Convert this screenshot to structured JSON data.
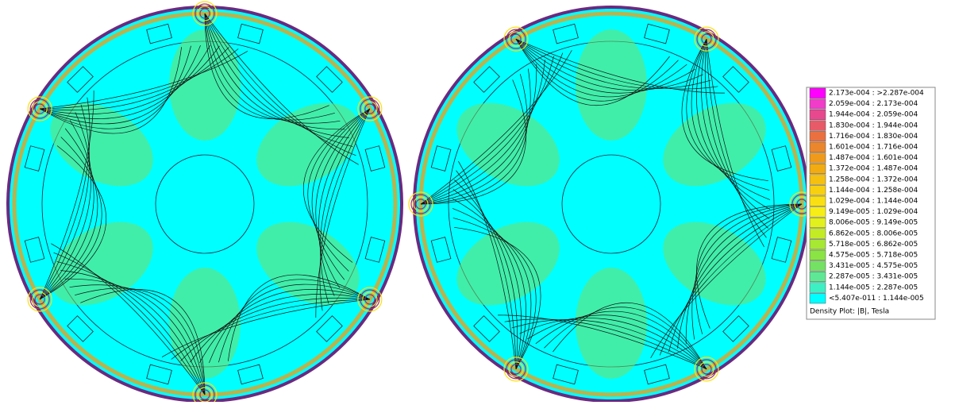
{
  "legend": {
    "items": [
      {
        "label": "2.173e-004 : >2.287e-004",
        "color": "#ff00ff"
      },
      {
        "label": "2.059e-004 : 2.173e-004",
        "color": "#f03cc8"
      },
      {
        "label": "1.944e-004 : 2.059e-004",
        "color": "#e8488e"
      },
      {
        "label": "1.830e-004 : 1.944e-004",
        "color": "#e85a68"
      },
      {
        "label": "1.716e-004 : 1.830e-004",
        "color": "#ea7040"
      },
      {
        "label": "1.601e-004 : 1.716e-004",
        "color": "#ec862c"
      },
      {
        "label": "1.487e-004 : 1.601e-004",
        "color": "#f09a1c"
      },
      {
        "label": "1.372e-004 : 1.487e-004",
        "color": "#f2ac12"
      },
      {
        "label": "1.258e-004 : 1.372e-004",
        "color": "#f5c010"
      },
      {
        "label": "1.144e-004 : 1.258e-004",
        "color": "#f8d010"
      },
      {
        "label": "1.029e-004 : 1.144e-004",
        "color": "#fae012"
      },
      {
        "label": "9.149e-005 : 1.029e-004",
        "color": "#f6ee16"
      },
      {
        "label": "8.006e-005 : 9.149e-005",
        "color": "#e2f01e"
      },
      {
        "label": "6.862e-005 : 8.006e-005",
        "color": "#c4ec24"
      },
      {
        "label": "5.718e-005 : 6.862e-005",
        "color": "#a6e832"
      },
      {
        "label": "4.575e-005 : 5.718e-005",
        "color": "#8ae444"
      },
      {
        "label": "3.431e-005 : 4.575e-005",
        "color": "#74e064"
      },
      {
        "label": "2.287e-005 : 3.431e-005",
        "color": "#5ee896"
      },
      {
        "label": "1.144e-005 : 2.287e-005",
        "color": "#3cf0c4"
      },
      {
        "label": "<5.407e-011 : 1.144e-005",
        "color": "#00ffff"
      }
    ],
    "title": "Density Plot: |B|, Tesla"
  }
}
